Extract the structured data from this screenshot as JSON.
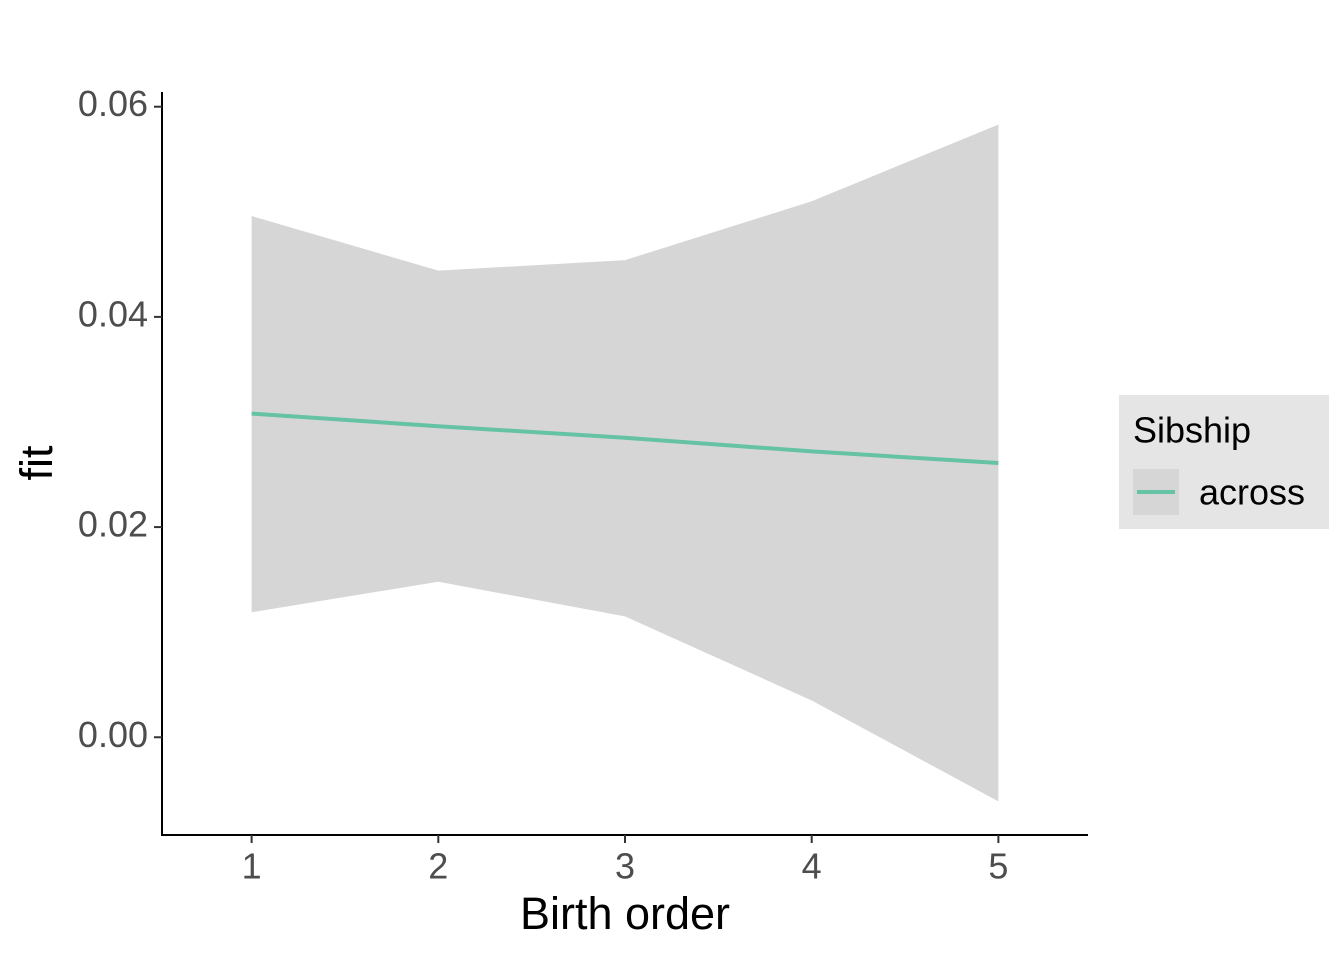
{
  "chart_data": {
    "type": "line",
    "x_label": "Birth order",
    "y_label": "fit",
    "x": [
      1,
      2,
      3,
      4,
      5
    ],
    "series": [
      {
        "name": "across",
        "color": "#66c2a5",
        "values": [
          0.0308,
          0.0296,
          0.0285,
          0.0272,
          0.0261
        ],
        "lower": [
          0.0119,
          0.0148,
          0.0115,
          0.0035,
          -0.0061
        ],
        "upper": [
          0.0496,
          0.0444,
          0.0454,
          0.051,
          0.0583
        ]
      }
    ],
    "band_color": "#d6d6d6",
    "legend_title": "Sibship",
    "legend_position": "right",
    "xlim": [
      0.52,
      5.48
    ],
    "xticks": [
      1,
      2,
      3,
      4,
      5
    ],
    "ylim": [
      -0.0093,
      0.0614
    ],
    "yticks": [
      {
        "value": 0,
        "label": "0.00"
      },
      0.02,
      0.04,
      0.06
    ],
    "grid": false
  }
}
